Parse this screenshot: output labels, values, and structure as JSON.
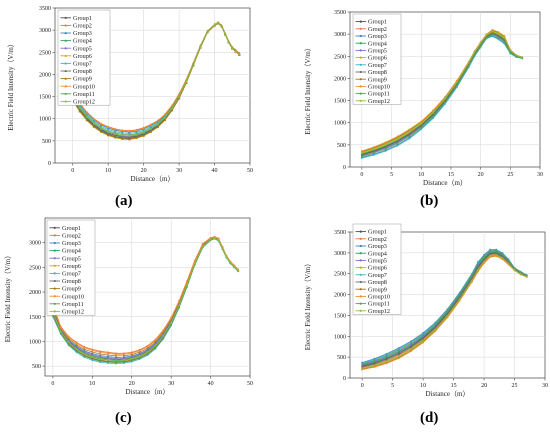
{
  "panel_labels": [
    "(a)",
    "(b)",
    "(c)",
    "(d)"
  ],
  "chart_data": [
    {
      "type": "line",
      "panel": "(a)",
      "xlabel": "Distance（m）",
      "ylabel": "Electric Field Intensity（V/m）",
      "xlim": [
        -5,
        50
      ],
      "ylim": [
        0,
        3500
      ],
      "xticks": [
        0,
        10,
        20,
        30,
        40,
        50
      ],
      "yticks": [
        0,
        500,
        1000,
        1500,
        2000,
        2500,
        3000,
        3500
      ],
      "grid": true,
      "legend": "top-left",
      "x": [
        0,
        2,
        4,
        6,
        8,
        10,
        12,
        14,
        16,
        18,
        20,
        22,
        24,
        26,
        28,
        30,
        32,
        34,
        36,
        38,
        40,
        41,
        42,
        43,
        44,
        45,
        46,
        47
      ],
      "low": [
        1400,
        1150,
        950,
        800,
        690,
        610,
        560,
        530,
        520,
        550,
        600,
        690,
        800,
        960,
        1180,
        1450,
        1800,
        2200,
        2600,
        2950,
        3100,
        3150,
        3080,
        2900,
        2720,
        2580,
        2510,
        2440
      ],
      "high": [
        1600,
        1350,
        1150,
        1000,
        890,
        820,
        770,
        740,
        730,
        750,
        800,
        870,
        960,
        1100,
        1300,
        1560,
        1880,
        2260,
        2650,
        2980,
        3130,
        3180,
        3110,
        2930,
        2750,
        2620,
        2550,
        2480
      ],
      "series": [
        {
          "name": "Group1",
          "color": "#4d4d4d",
          "t": 0.3
        },
        {
          "name": "Group2",
          "color": "#e8743b",
          "t": 1.0
        },
        {
          "name": "Group3",
          "color": "#3d7fc1",
          "t": 0.85
        },
        {
          "name": "Group4",
          "color": "#2ca25f",
          "t": 0.2
        },
        {
          "name": "Group5",
          "color": "#7b6fc8",
          "t": 0.4
        },
        {
          "name": "Group6",
          "color": "#d9a400",
          "t": 0.05
        },
        {
          "name": "Group7",
          "color": "#35b7c9",
          "t": 0.7
        },
        {
          "name": "Group8",
          "color": "#6d6d6d",
          "t": 0.15
        },
        {
          "name": "Group9",
          "color": "#a6761d",
          "t": 0.1
        },
        {
          "name": "Group10",
          "color": "#f28e2b",
          "t": 0.95
        },
        {
          "name": "Group11",
          "color": "#59a14f",
          "t": 0.55
        },
        {
          "name": "Group12",
          "color": "#8cbf3f",
          "t": 0.45
        }
      ]
    },
    {
      "type": "line",
      "panel": "(b)",
      "xlabel": "Distance（m）",
      "ylabel": "Electric Field Intensity（V/m）",
      "xlim": [
        -2,
        30
      ],
      "ylim": [
        0,
        3500
      ],
      "xticks": [
        0,
        5,
        10,
        15,
        20,
        25,
        30
      ],
      "yticks": [
        0,
        500,
        1000,
        1500,
        2000,
        2500,
        3000,
        3500
      ],
      "grid": true,
      "legend": "top-left",
      "x": [
        0,
        2,
        4,
        6,
        8,
        10,
        12,
        14,
        16,
        18,
        19,
        20,
        21,
        22,
        23,
        24,
        25,
        26,
        27
      ],
      "low": [
        200,
        270,
        360,
        480,
        640,
        850,
        1100,
        1420,
        1800,
        2250,
        2500,
        2700,
        2900,
        2950,
        2880,
        2780,
        2560,
        2480,
        2450
      ],
      "high": [
        360,
        450,
        560,
        690,
        850,
        1030,
        1280,
        1580,
        1950,
        2380,
        2620,
        2820,
        3000,
        3100,
        3050,
        2960,
        2650,
        2530,
        2480
      ],
      "series": [
        {
          "name": "Group1",
          "color": "#4d4d4d",
          "t": 0.5
        },
        {
          "name": "Group2",
          "color": "#e8743b",
          "t": 0.85
        },
        {
          "name": "Group3",
          "color": "#3d7fc1",
          "t": 0.1
        },
        {
          "name": "Group4",
          "color": "#2ca25f",
          "t": 0.6
        },
        {
          "name": "Group5",
          "color": "#7b6fc8",
          "t": 0.35
        },
        {
          "name": "Group6",
          "color": "#d9a400",
          "t": 0.7
        },
        {
          "name": "Group7",
          "color": "#35b7c9",
          "t": 0.0
        },
        {
          "name": "Group8",
          "color": "#6d6d6d",
          "t": 0.45
        },
        {
          "name": "Group9",
          "color": "#a6761d",
          "t": 0.9
        },
        {
          "name": "Group10",
          "color": "#f28e2b",
          "t": 1.0
        },
        {
          "name": "Group11",
          "color": "#59a14f",
          "t": 0.25
        },
        {
          "name": "Group12",
          "color": "#8cbf3f",
          "t": 0.8
        }
      ]
    },
    {
      "type": "line",
      "panel": "(c)",
      "xlabel": "Distance（m）",
      "ylabel": "Electric Field Intensity（V/m）",
      "xlim": [
        -2,
        50
      ],
      "ylim": [
        300,
        3500
      ],
      "xticks": [
        0,
        10,
        20,
        30,
        40,
        50
      ],
      "yticks": [
        500,
        1000,
        1500,
        2000,
        2500,
        3000
      ],
      "grid": true,
      "legend": "top-left",
      "x": [
        0,
        2,
        4,
        6,
        8,
        10,
        12,
        14,
        16,
        18,
        20,
        22,
        24,
        26,
        28,
        30,
        32,
        34,
        36,
        38,
        40,
        41,
        42,
        43,
        44,
        45,
        46,
        47
      ],
      "low": [
        1500,
        1150,
        920,
        780,
        680,
        620,
        580,
        560,
        550,
        560,
        590,
        640,
        720,
        850,
        1050,
        1320,
        1680,
        2100,
        2550,
        2900,
        3050,
        3080,
        3040,
        2870,
        2700,
        2580,
        2500,
        2420
      ],
      "high": [
        1750,
        1300,
        1100,
        980,
        890,
        840,
        800,
        780,
        760,
        760,
        780,
        830,
        910,
        1040,
        1230,
        1480,
        1820,
        2220,
        2640,
        2980,
        3100,
        3120,
        3090,
        2920,
        2740,
        2620,
        2540,
        2460
      ],
      "series": [
        {
          "name": "Group1",
          "color": "#4d4d4d",
          "t": 0.4
        },
        {
          "name": "Group2",
          "color": "#e8743b",
          "t": 1.0
        },
        {
          "name": "Group3",
          "color": "#3d7fc1",
          "t": 0.6
        },
        {
          "name": "Group4",
          "color": "#2ca25f",
          "t": 0.3
        },
        {
          "name": "Group5",
          "color": "#7b6fc8",
          "t": 0.5
        },
        {
          "name": "Group6",
          "color": "#d9a400",
          "t": 0.2
        },
        {
          "name": "Group7",
          "color": "#35b7c9",
          "t": 0.0
        },
        {
          "name": "Group8",
          "color": "#6d6d6d",
          "t": 0.15
        },
        {
          "name": "Group9",
          "color": "#a6761d",
          "t": 0.75
        },
        {
          "name": "Group10",
          "color": "#f28e2b",
          "t": 0.9
        },
        {
          "name": "Group11",
          "color": "#59a14f",
          "t": 0.1
        },
        {
          "name": "Group12",
          "color": "#8cbf3f",
          "t": 0.35
        }
      ]
    },
    {
      "type": "line",
      "panel": "(d)",
      "xlabel": "Distance（m）",
      "ylabel": "Electric Field Intensity（V/m）",
      "xlim": [
        -2,
        30
      ],
      "ylim": [
        0,
        3500
      ],
      "xticks": [
        0,
        5,
        10,
        15,
        20,
        25,
        30
      ],
      "yticks": [
        0,
        500,
        1000,
        1500,
        2000,
        2500,
        3000,
        3500
      ],
      "grid": true,
      "legend": "top-left",
      "x": [
        0,
        2,
        4,
        6,
        8,
        10,
        12,
        14,
        16,
        18,
        19,
        20,
        21,
        22,
        23,
        24,
        25,
        26,
        27
      ],
      "low": [
        200,
        260,
        350,
        470,
        640,
        850,
        1120,
        1450,
        1850,
        2300,
        2550,
        2750,
        2900,
        2920,
        2850,
        2720,
        2580,
        2480,
        2420
      ],
      "high": [
        370,
        460,
        580,
        720,
        880,
        1080,
        1330,
        1650,
        2050,
        2500,
        2780,
        2950,
        3080,
        3080,
        3000,
        2850,
        2640,
        2550,
        2470
      ],
      "series": [
        {
          "name": "Group1",
          "color": "#4d4d4d",
          "t": 0.5
        },
        {
          "name": "Group2",
          "color": "#e8743b",
          "t": 0.3
        },
        {
          "name": "Group3",
          "color": "#3d7fc1",
          "t": 1.0
        },
        {
          "name": "Group4",
          "color": "#2ca25f",
          "t": 0.6
        },
        {
          "name": "Group5",
          "color": "#7b6fc8",
          "t": 0.7
        },
        {
          "name": "Group6",
          "color": "#d9a400",
          "t": 0.15
        },
        {
          "name": "Group7",
          "color": "#35b7c9",
          "t": 0.9
        },
        {
          "name": "Group8",
          "color": "#6d6d6d",
          "t": 0.4
        },
        {
          "name": "Group9",
          "color": "#a6761d",
          "t": 0.05
        },
        {
          "name": "Group10",
          "color": "#f28e2b",
          "t": 0.0
        },
        {
          "name": "Group11",
          "color": "#59a14f",
          "t": 0.8
        },
        {
          "name": "Group12",
          "color": "#8cbf3f",
          "t": 0.2
        }
      ]
    }
  ]
}
